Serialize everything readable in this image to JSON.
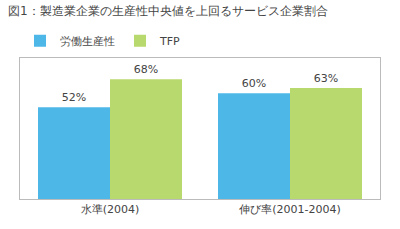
{
  "chart_data": {
    "type": "bar",
    "title": "図1：製造業企業の生産性中央値を上回るサービス企業割合",
    "categories": [
      "水準(2004)",
      "伸び率(2001-2004)"
    ],
    "series": [
      {
        "name": "労働生産性",
        "color": "#4db8e8",
        "values": [
          52,
          60
        ],
        "value_labels": [
          "52%",
          "60%"
        ]
      },
      {
        "name": "TFP",
        "color": "#b8d96e",
        "values": [
          68,
          63
        ],
        "value_labels": [
          "68%",
          "63%"
        ]
      }
    ],
    "ylim": [
      0,
      80
    ],
    "yticks": [],
    "grid": false,
    "legend": "upper left",
    "data_labels": true,
    "tick_labels": "x"
  }
}
